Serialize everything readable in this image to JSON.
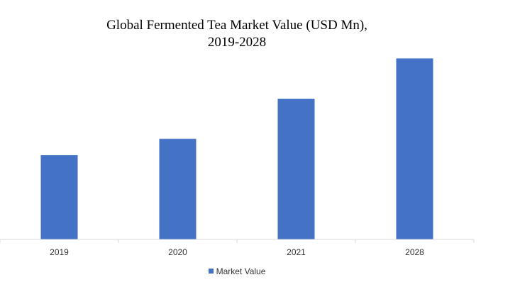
{
  "chart_data": {
    "type": "bar",
    "title_line1": "Global Fermented Tea Market Value (USD Mn),",
    "title_line2": "2019-2028",
    "categories": [
      "2019",
      "2020",
      "2021",
      "2028"
    ],
    "series": [
      {
        "name": "Market Value",
        "values": [
          21,
          25,
          35,
          45
        ],
        "color": "#4472C4"
      }
    ],
    "ylim": [
      0,
      50
    ],
    "grid": false,
    "legend": "bottom-center",
    "axis_color": "#D9D9D9"
  }
}
